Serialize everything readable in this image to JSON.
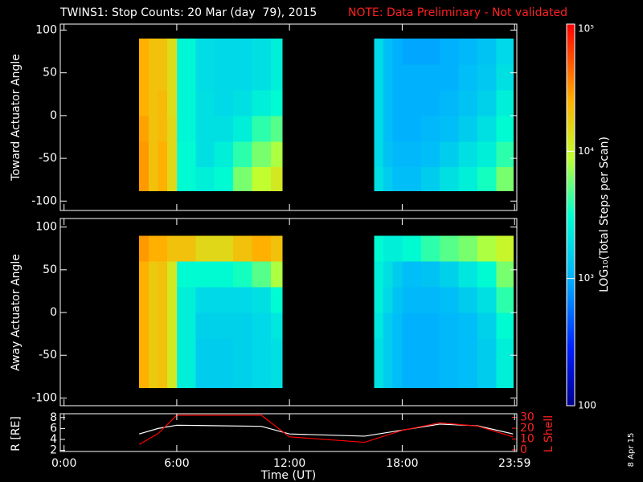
{
  "chart_data": [
    {
      "type": "heatmap",
      "title": "TWINS1: Stop Counts: 20 Mar (day  79), 2015",
      "note": "NOTE: Data Preliminary - Not validated",
      "ylabel": "Toward Actuator Angle",
      "x_bins": [
        4,
        4.5,
        5,
        5.5,
        6,
        7,
        8,
        9,
        10,
        11,
        11.6,
        16.5,
        17,
        17.5,
        18,
        19,
        20,
        21,
        22,
        23,
        23.9
      ],
      "y_bins": [
        -88,
        -60,
        -30,
        0,
        30,
        60,
        90
      ],
      "z": [
        [
          30000,
          20000,
          25000,
          15000,
          3000,
          2500,
          3000,
          6000,
          9000,
          12000,
          null,
          2000,
          1500,
          1200,
          1200,
          1500,
          2000,
          2500,
          3500,
          6000
        ],
        [
          30000,
          20000,
          25000,
          15000,
          3000,
          2000,
          2500,
          4000,
          6000,
          8000,
          null,
          1800,
          1300,
          1100,
          1100,
          1200,
          1500,
          2000,
          2500,
          4000
        ],
        [
          28000,
          20000,
          22000,
          15000,
          2800,
          2000,
          2000,
          2500,
          4000,
          5000,
          null,
          1800,
          1200,
          1000,
          1000,
          1100,
          1200,
          1500,
          2000,
          3000
        ],
        [
          25000,
          20000,
          22000,
          14000,
          2800,
          2000,
          1800,
          2000,
          2500,
          3000,
          null,
          1800,
          1200,
          1000,
          1000,
          1000,
          1100,
          1300,
          1600,
          2500
        ],
        [
          25000,
          20000,
          20000,
          14000,
          2800,
          1900,
          1800,
          1800,
          2000,
          2500,
          null,
          1800,
          1200,
          1000,
          1000,
          1000,
          1000,
          1200,
          1400,
          2000
        ],
        [
          25000,
          20000,
          20000,
          14000,
          2800,
          1900,
          1800,
          1800,
          2000,
          2500,
          null,
          1800,
          1200,
          1000,
          900,
          900,
          1000,
          1100,
          1300,
          1800
        ]
      ],
      "xlim": [
        -0.2,
        24.1
      ],
      "ylim": [
        -111,
        107
      ],
      "yticks": [
        -100,
        -50,
        0,
        50,
        100
      ],
      "zlim": [
        100,
        100000
      ],
      "zscale": "log",
      "zticks": [
        100,
        {
          "value": 1000,
          "label": "10³"
        },
        {
          "value": 10000,
          "label": "10⁴"
        },
        {
          "value": 100000,
          "label": "10⁵"
        }
      ],
      "zlabel": "LOG₁₀(Total Steps per Scan)"
    },
    {
      "type": "heatmap",
      "ylabel": "Away Actuator Angle",
      "x_bins": [
        4,
        4.5,
        5,
        5.5,
        6,
        7,
        8,
        9,
        10,
        11,
        11.6,
        16.5,
        17,
        17.5,
        18,
        19,
        20,
        21,
        22,
        23,
        23.9
      ],
      "y_bins": [
        -88,
        -60,
        -30,
        0,
        30,
        60,
        90
      ],
      "z": [
        [
          25000,
          18000,
          20000,
          12000,
          2500,
          1500,
          1500,
          1600,
          1800,
          2000,
          null,
          2000,
          1500,
          1200,
          1000,
          1000,
          1100,
          1200,
          1500,
          2500
        ],
        [
          25000,
          18000,
          20000,
          12000,
          2500,
          1500,
          1500,
          1600,
          1800,
          2000,
          null,
          2000,
          1500,
          1200,
          1000,
          1000,
          1100,
          1200,
          1500,
          2500
        ],
        [
          25000,
          18000,
          20000,
          12000,
          2500,
          1600,
          1600,
          1600,
          1800,
          2200,
          null,
          2200,
          1500,
          1200,
          1000,
          1000,
          1100,
          1200,
          1600,
          3000
        ],
        [
          25000,
          18000,
          20000,
          12000,
          2500,
          1800,
          1800,
          1800,
          2000,
          3000,
          null,
          2500,
          1800,
          1300,
          1100,
          1100,
          1200,
          1500,
          2000,
          4000
        ],
        [
          25000,
          18000,
          20000,
          12000,
          3000,
          3000,
          3000,
          3500,
          5000,
          8000,
          null,
          2500,
          2000,
          1500,
          1200,
          1300,
          1600,
          2200,
          3000,
          6000
        ],
        [
          30000,
          25000,
          25000,
          20000,
          20000,
          15000,
          15000,
          20000,
          25000,
          20000,
          null,
          3000,
          2500,
          2500,
          3000,
          4000,
          5000,
          6000,
          8000,
          10000
        ]
      ],
      "xlim": [
        -0.2,
        24.1
      ],
      "ylim": [
        -109,
        110
      ],
      "yticks": [
        -100,
        -50,
        0,
        50,
        100
      ],
      "zlim": [
        100,
        100000
      ],
      "zscale": "log"
    },
    {
      "type": "line",
      "xlabel": "Time (UT)",
      "ylabel": "R [RE]",
      "y2label": "L Shell",
      "annotation": "8 Apr 15",
      "x": [
        4,
        5,
        6,
        10.5,
        12,
        16,
        18,
        20,
        22,
        23.9
      ],
      "series": [
        {
          "color": "#ffffff",
          "values": [
            5,
            6,
            6.6,
            6.4,
            5,
            4.6,
            5.7,
            6.8,
            6.5,
            5
          ]
        },
        {
          "color": "#ff0000",
          "axis": "y2",
          "values": [
            5,
            15,
            32,
            32,
            12,
            7,
            18,
            25,
            22,
            12
          ]
        }
      ],
      "xlim": [
        -0.2,
        24.1
      ],
      "xticks": [
        {
          "value": 0,
          "label": "0:00"
        },
        {
          "value": 6,
          "label": "6:00"
        },
        {
          "value": 12,
          "label": "12:00"
        },
        {
          "value": 18,
          "label": "18:00"
        },
        {
          "value": 23.98,
          "label": "23:59"
        }
      ],
      "ylim": [
        1.8,
        8.7
      ],
      "yticks": [
        2,
        4,
        6,
        8
      ],
      "y2lim": [
        -1.5,
        33.4
      ],
      "y2ticks": [
        0,
        10,
        20,
        30
      ]
    }
  ]
}
